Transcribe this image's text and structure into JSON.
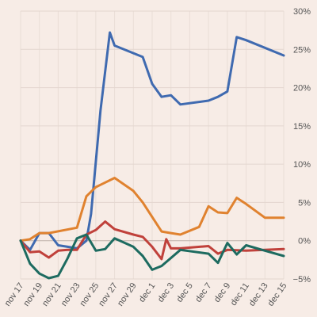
{
  "chart_data": {
    "type": "line",
    "title": "",
    "xlabel": "",
    "ylabel": "",
    "y_unit": "%",
    "ylim": [
      -5,
      30
    ],
    "yticks": [
      -5,
      0,
      5,
      10,
      15,
      20,
      25,
      30
    ],
    "ytick_labels": [
      "−5%",
      "0%",
      "5%",
      "10%",
      "15%",
      "20%",
      "25%",
      "30%"
    ],
    "grid": true,
    "legend": "none",
    "x": [
      "nov 17",
      "nov 18",
      "nov 19",
      "nov 20",
      "nov 21",
      "nov 22",
      "nov 23",
      "nov 24",
      "nov 25",
      "nov 26",
      "nov 27",
      "nov 28",
      "nov 29",
      "nov 30",
      "dec 1",
      "dec 2",
      "dec 3",
      "dec 4",
      "dec 5",
      "dec 6",
      "dec 7",
      "dec 8",
      "dec 9",
      "dec 10",
      "dec 11",
      "dec 12",
      "dec 13",
      "dec 14",
      "dec 15"
    ],
    "xtick_labels": [
      "nov 17",
      "nov 19",
      "nov 21",
      "nov 23",
      "nov 25",
      "nov 27",
      "nov 29",
      "dec 1",
      "dec 3",
      "dec 5",
      "dec 7",
      "dec 9",
      "dec 11",
      "dec 13",
      "dec 15"
    ],
    "series": [
      {
        "color": "#3f6ab0",
        "points": [
          [
            "nov 17",
            0
          ],
          [
            "nov 18",
            -1.2
          ],
          [
            "nov 19",
            1
          ],
          [
            "nov 20",
            1
          ],
          [
            "nov 21",
            -0.6
          ],
          [
            "nov 22",
            -0.8
          ],
          [
            "nov 23",
            -1
          ],
          [
            "nov 24",
            0
          ],
          [
            "nov 24.5",
            3.5
          ],
          [
            "nov 25.5",
            17
          ],
          [
            "nov 26.5",
            27.2
          ],
          [
            "nov 27",
            25.5
          ],
          [
            "nov 30",
            24
          ],
          [
            "dec 1",
            20.5
          ],
          [
            "dec 2",
            18.8
          ],
          [
            "dec 3",
            19
          ],
          [
            "dec 4",
            17.8
          ],
          [
            "dec 7",
            18.3
          ],
          [
            "dec 8",
            18.8
          ],
          [
            "dec 9",
            19.5
          ],
          [
            "dec 10",
            26.6
          ],
          [
            "dec 11",
            26.2
          ],
          [
            "dec 15",
            24.2
          ]
        ]
      },
      {
        "color": "#e0822f",
        "points": [
          [
            "nov 17",
            0
          ],
          [
            "nov 18",
            0.2
          ],
          [
            "nov 19",
            1
          ],
          [
            "nov 20",
            1
          ],
          [
            "nov 23",
            1.7
          ],
          [
            "nov 24",
            5.8
          ],
          [
            "nov 25",
            7
          ],
          [
            "nov 27",
            8.2
          ],
          [
            "nov 29",
            6.5
          ],
          [
            "nov 30",
            5
          ],
          [
            "dec 2",
            1.2
          ],
          [
            "dec 3",
            1
          ],
          [
            "dec 4",
            0.8
          ],
          [
            "dec 6",
            1.8
          ],
          [
            "dec 7",
            4.5
          ],
          [
            "dec 8",
            3.7
          ],
          [
            "dec 9",
            3.6
          ],
          [
            "dec 10",
            5.6
          ],
          [
            "dec 11",
            4.8
          ],
          [
            "dec 13",
            3
          ],
          [
            "dec 15",
            3
          ]
        ]
      },
      {
        "color": "#c0413b",
        "points": [
          [
            "nov 17",
            0
          ],
          [
            "nov 18",
            -1.5
          ],
          [
            "nov 19",
            -1.4
          ],
          [
            "nov 20",
            -2.2
          ],
          [
            "nov 21",
            -1.3
          ],
          [
            "nov 22",
            -1.2
          ],
          [
            "nov 23",
            -1.2
          ],
          [
            "nov 24",
            0.8
          ],
          [
            "nov 25",
            1.4
          ],
          [
            "nov 26",
            2.5
          ],
          [
            "nov 27",
            1.5
          ],
          [
            "nov 29",
            0.8
          ],
          [
            "nov 30",
            0.5
          ],
          [
            "dec 1",
            -0.8
          ],
          [
            "dec 2",
            -2.4
          ],
          [
            "dec 2.5",
            0.2
          ],
          [
            "dec 3",
            -1
          ],
          [
            "dec 4",
            -1
          ],
          [
            "dec 7",
            -0.7
          ],
          [
            "dec 8",
            -1.7
          ],
          [
            "dec 9",
            -1.2
          ],
          [
            "dec 11",
            -1.3
          ],
          [
            "dec 15",
            -1.1
          ]
        ]
      },
      {
        "color": "#1d6b60",
        "points": [
          [
            "nov 17",
            0
          ],
          [
            "nov 18",
            -3
          ],
          [
            "nov 19",
            -4.3
          ],
          [
            "nov 20",
            -4.9
          ],
          [
            "nov 21",
            -4.6
          ],
          [
            "nov 22",
            -2.3
          ],
          [
            "nov 23",
            0.3
          ],
          [
            "nov 24",
            0.8
          ],
          [
            "nov 25",
            -1.3
          ],
          [
            "nov 26",
            -1.1
          ],
          [
            "nov 27",
            0.3
          ],
          [
            "nov 29",
            -0.8
          ],
          [
            "nov 30",
            -2
          ],
          [
            "dec 1",
            -3.8
          ],
          [
            "dec 2",
            -3.3
          ],
          [
            "dec 4",
            -1.2
          ],
          [
            "dec 7",
            -1.7
          ],
          [
            "dec 8",
            -2.9
          ],
          [
            "dec 9",
            -0.3
          ],
          [
            "dec 10",
            -1.8
          ],
          [
            "dec 11",
            -0.6
          ],
          [
            "dec 13",
            -1.3
          ],
          [
            "dec 15",
            -2
          ]
        ]
      }
    ]
  }
}
